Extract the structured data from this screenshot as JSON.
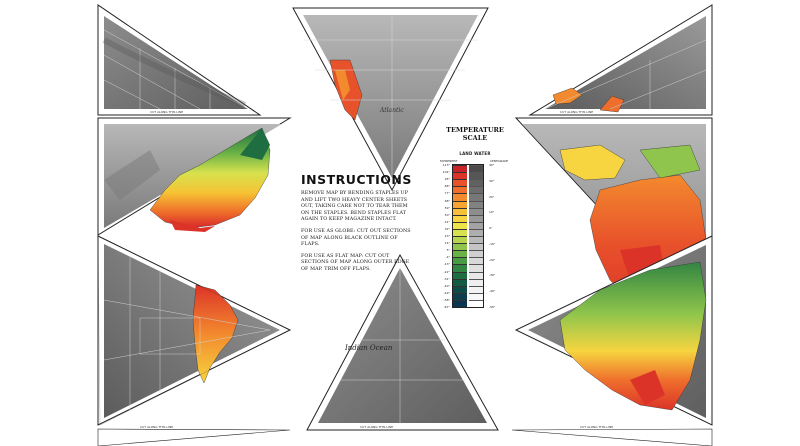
{
  "instructions": {
    "title": "INSTRUCTIONS",
    "para1": "REMOVE MAP BY BENDING STAPLES UP AND LIFT TWO HEAVY CENTER SHEETS OUT, TAKING CARE NOT TO TEAR THEM ON THE STAPLES. BEND STAPLES FLAT AGAIN TO KEEP MAGAZINE INTACT.",
    "para2": "FOR USE AS GLOBE: CUT OUT SECTIONS OF MAP ALONG BLACK OUTLINE OF FLAPS.",
    "para3": "FOR USE AS FLAT MAP: CUT OUT SECTIONS OF MAP ALONG OUTER EDGE OF MAP. TRIM OFF FLAPS."
  },
  "temperature_scale": {
    "title_line1": "TEMPERATURE",
    "title_line2": "SCALE",
    "subtitle": "LAND  WATER",
    "left_header": "FAHRENHEIT",
    "right_header": "CENTIGRADE",
    "fahrenheit_ticks": [
      "113°",
      "104°",
      "95°",
      "86°",
      "77°",
      "68°",
      "59°",
      "50°",
      "41°",
      "32°",
      "23°",
      "14°",
      "5°",
      "-4°",
      "-13°",
      "-22°",
      "-31°",
      "-40°",
      "-49°",
      "-58°",
      "-67°"
    ],
    "centigrade_ticks": [
      "40°",
      "30°",
      "20°",
      "10°",
      "0°",
      "-10°",
      "-20°",
      "-30°",
      "-40°",
      "-50°"
    ],
    "land_colors": [
      "#c9232a",
      "#dc3328",
      "#e8522b",
      "#ef6e2c",
      "#f38a2e",
      "#f7a433",
      "#f8bf3a",
      "#f6d540",
      "#eee44a",
      "#d7e24e",
      "#b5d54f",
      "#8fc54c",
      "#6ab246",
      "#4a9c44",
      "#328542",
      "#1f6e42",
      "#135a44",
      "#0e4a47",
      "#0c3e4d",
      "#0a3450"
    ],
    "water_colors": [
      "#4b4b4b",
      "#565656",
      "#616161",
      "#6c6c6c",
      "#777777",
      "#828282",
      "#8d8d8d",
      "#989898",
      "#a3a3a3",
      "#aeaeae",
      "#b9b9b9",
      "#c4c4c4",
      "#cfcfcf",
      "#d8d8d8",
      "#e0e0e0",
      "#e7e7e7",
      "#eeeeee",
      "#f3f3f3",
      "#f8f8f8",
      "#ffffff"
    ]
  },
  "ocean_labels": {
    "indian_ocean": "Indian Ocean",
    "north_atlantic": "Atlantic"
  },
  "flap_text": "CUT ALONG THIS LINE",
  "colors": {
    "ocean_dark": "#6e6e6e",
    "ocean_mid": "#8a8a8a",
    "ocean_light": "#b5b5b5",
    "hot": "#d8282a",
    "warm": "#ee6a2a",
    "mild": "#f6c233",
    "cool": "#cfe04a",
    "cold": "#4a9c44",
    "coldest": "#0e4a47"
  }
}
